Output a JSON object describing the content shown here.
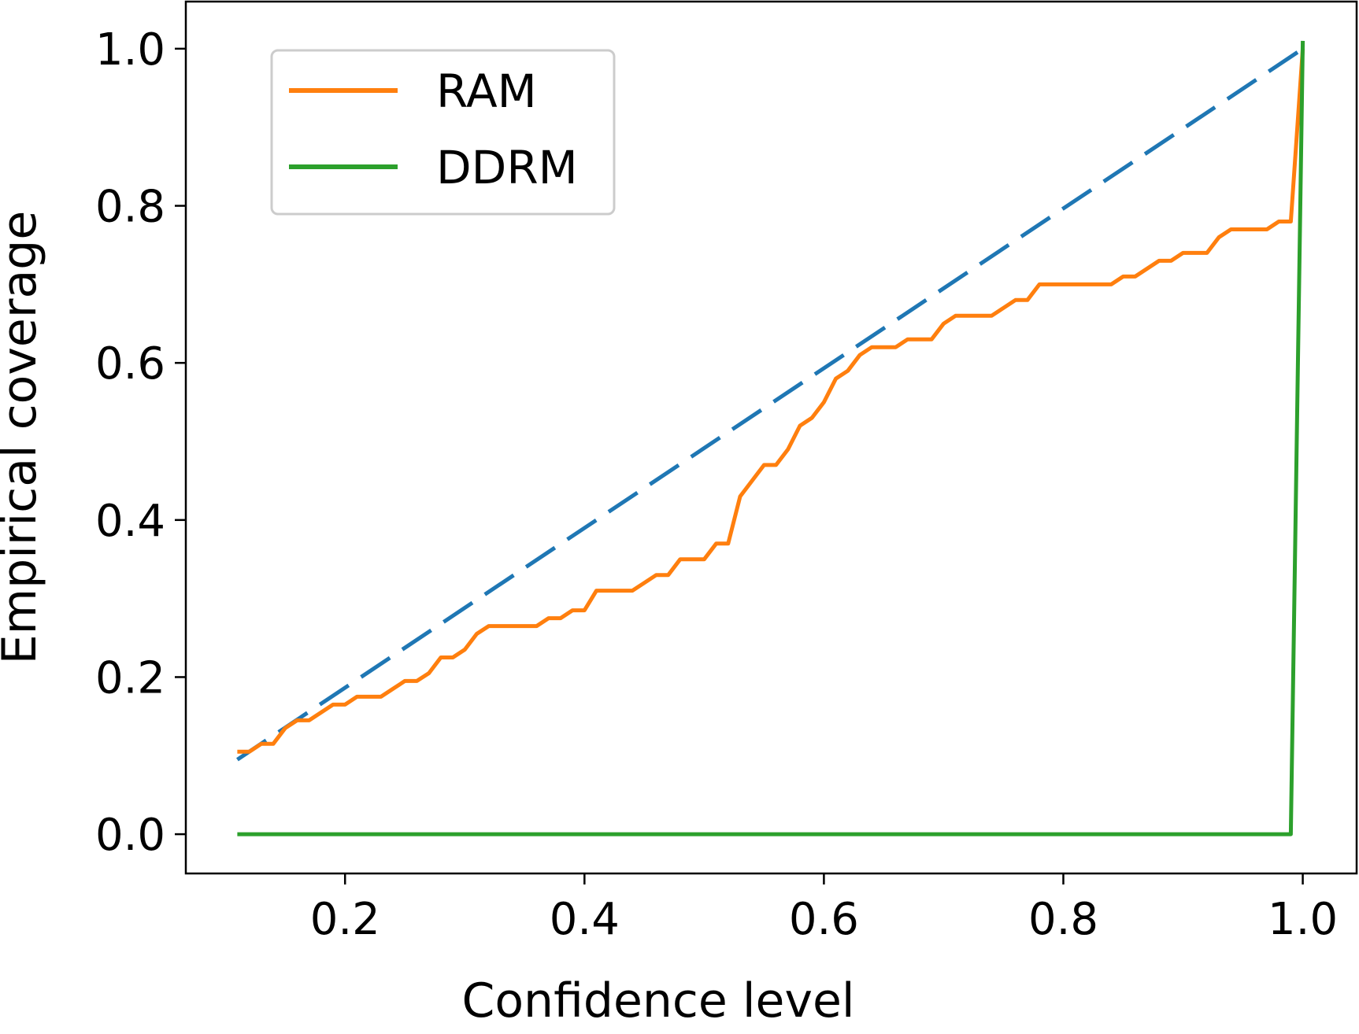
{
  "chart_data": {
    "type": "line",
    "title": "",
    "xlabel": "Confidence level",
    "ylabel": "Empirical coverage",
    "xlim": [
      0.067,
      1.045
    ],
    "ylim": [
      -0.05,
      1.06
    ],
    "xticks": [
      0.2,
      0.4,
      0.6,
      0.8,
      1.0
    ],
    "xtick_labels": [
      "0.2",
      "0.4",
      "0.6",
      "0.8",
      "1.0"
    ],
    "yticks": [
      0.0,
      0.2,
      0.4,
      0.6,
      0.8,
      1.0
    ],
    "ytick_labels": [
      "0.0",
      "0.2",
      "0.4",
      "0.6",
      "0.8",
      "1.0"
    ],
    "grid": false,
    "legend_position": "top-left",
    "series": [
      {
        "name": "",
        "color": "#1f77b4",
        "style": "dashed",
        "x": [
          0.11,
          1.0
        ],
        "y": [
          0.095,
          1.0
        ]
      },
      {
        "name": "RAM",
        "color": "#ff7f0e",
        "style": "solid",
        "x": [
          0.11,
          0.12,
          0.13,
          0.14,
          0.15,
          0.16,
          0.17,
          0.18,
          0.19,
          0.2,
          0.21,
          0.22,
          0.23,
          0.24,
          0.25,
          0.26,
          0.27,
          0.28,
          0.29,
          0.3,
          0.31,
          0.32,
          0.33,
          0.34,
          0.35,
          0.36,
          0.37,
          0.38,
          0.39,
          0.4,
          0.41,
          0.42,
          0.43,
          0.44,
          0.45,
          0.46,
          0.47,
          0.48,
          0.49,
          0.5,
          0.51,
          0.52,
          0.53,
          0.54,
          0.55,
          0.56,
          0.57,
          0.58,
          0.59,
          0.6,
          0.61,
          0.62,
          0.63,
          0.64,
          0.65,
          0.66,
          0.67,
          0.68,
          0.69,
          0.7,
          0.71,
          0.72,
          0.73,
          0.74,
          0.75,
          0.76,
          0.77,
          0.78,
          0.79,
          0.8,
          0.81,
          0.82,
          0.83,
          0.84,
          0.85,
          0.86,
          0.87,
          0.88,
          0.89,
          0.9,
          0.91,
          0.92,
          0.93,
          0.94,
          0.95,
          0.96,
          0.97,
          0.98,
          0.99,
          1.0
        ],
        "y": [
          0.105,
          0.105,
          0.115,
          0.115,
          0.135,
          0.145,
          0.145,
          0.155,
          0.165,
          0.165,
          0.175,
          0.175,
          0.175,
          0.185,
          0.195,
          0.195,
          0.205,
          0.225,
          0.225,
          0.235,
          0.255,
          0.265,
          0.265,
          0.265,
          0.265,
          0.265,
          0.275,
          0.275,
          0.285,
          0.285,
          0.31,
          0.31,
          0.31,
          0.31,
          0.32,
          0.33,
          0.33,
          0.35,
          0.35,
          0.35,
          0.37,
          0.37,
          0.43,
          0.45,
          0.47,
          0.47,
          0.49,
          0.52,
          0.53,
          0.55,
          0.58,
          0.59,
          0.61,
          0.62,
          0.62,
          0.62,
          0.63,
          0.63,
          0.63,
          0.65,
          0.66,
          0.66,
          0.66,
          0.66,
          0.67,
          0.68,
          0.68,
          0.7,
          0.7,
          0.7,
          0.7,
          0.7,
          0.7,
          0.7,
          0.71,
          0.71,
          0.72,
          0.73,
          0.73,
          0.74,
          0.74,
          0.74,
          0.76,
          0.77,
          0.77,
          0.77,
          0.77,
          0.78,
          0.78,
          1.0
        ]
      },
      {
        "name": "DDRM",
        "color": "#2ca02c",
        "style": "solid",
        "x": [
          0.11,
          0.99,
          1.0
        ],
        "y": [
          0.0,
          0.0,
          1.01
        ]
      }
    ]
  }
}
